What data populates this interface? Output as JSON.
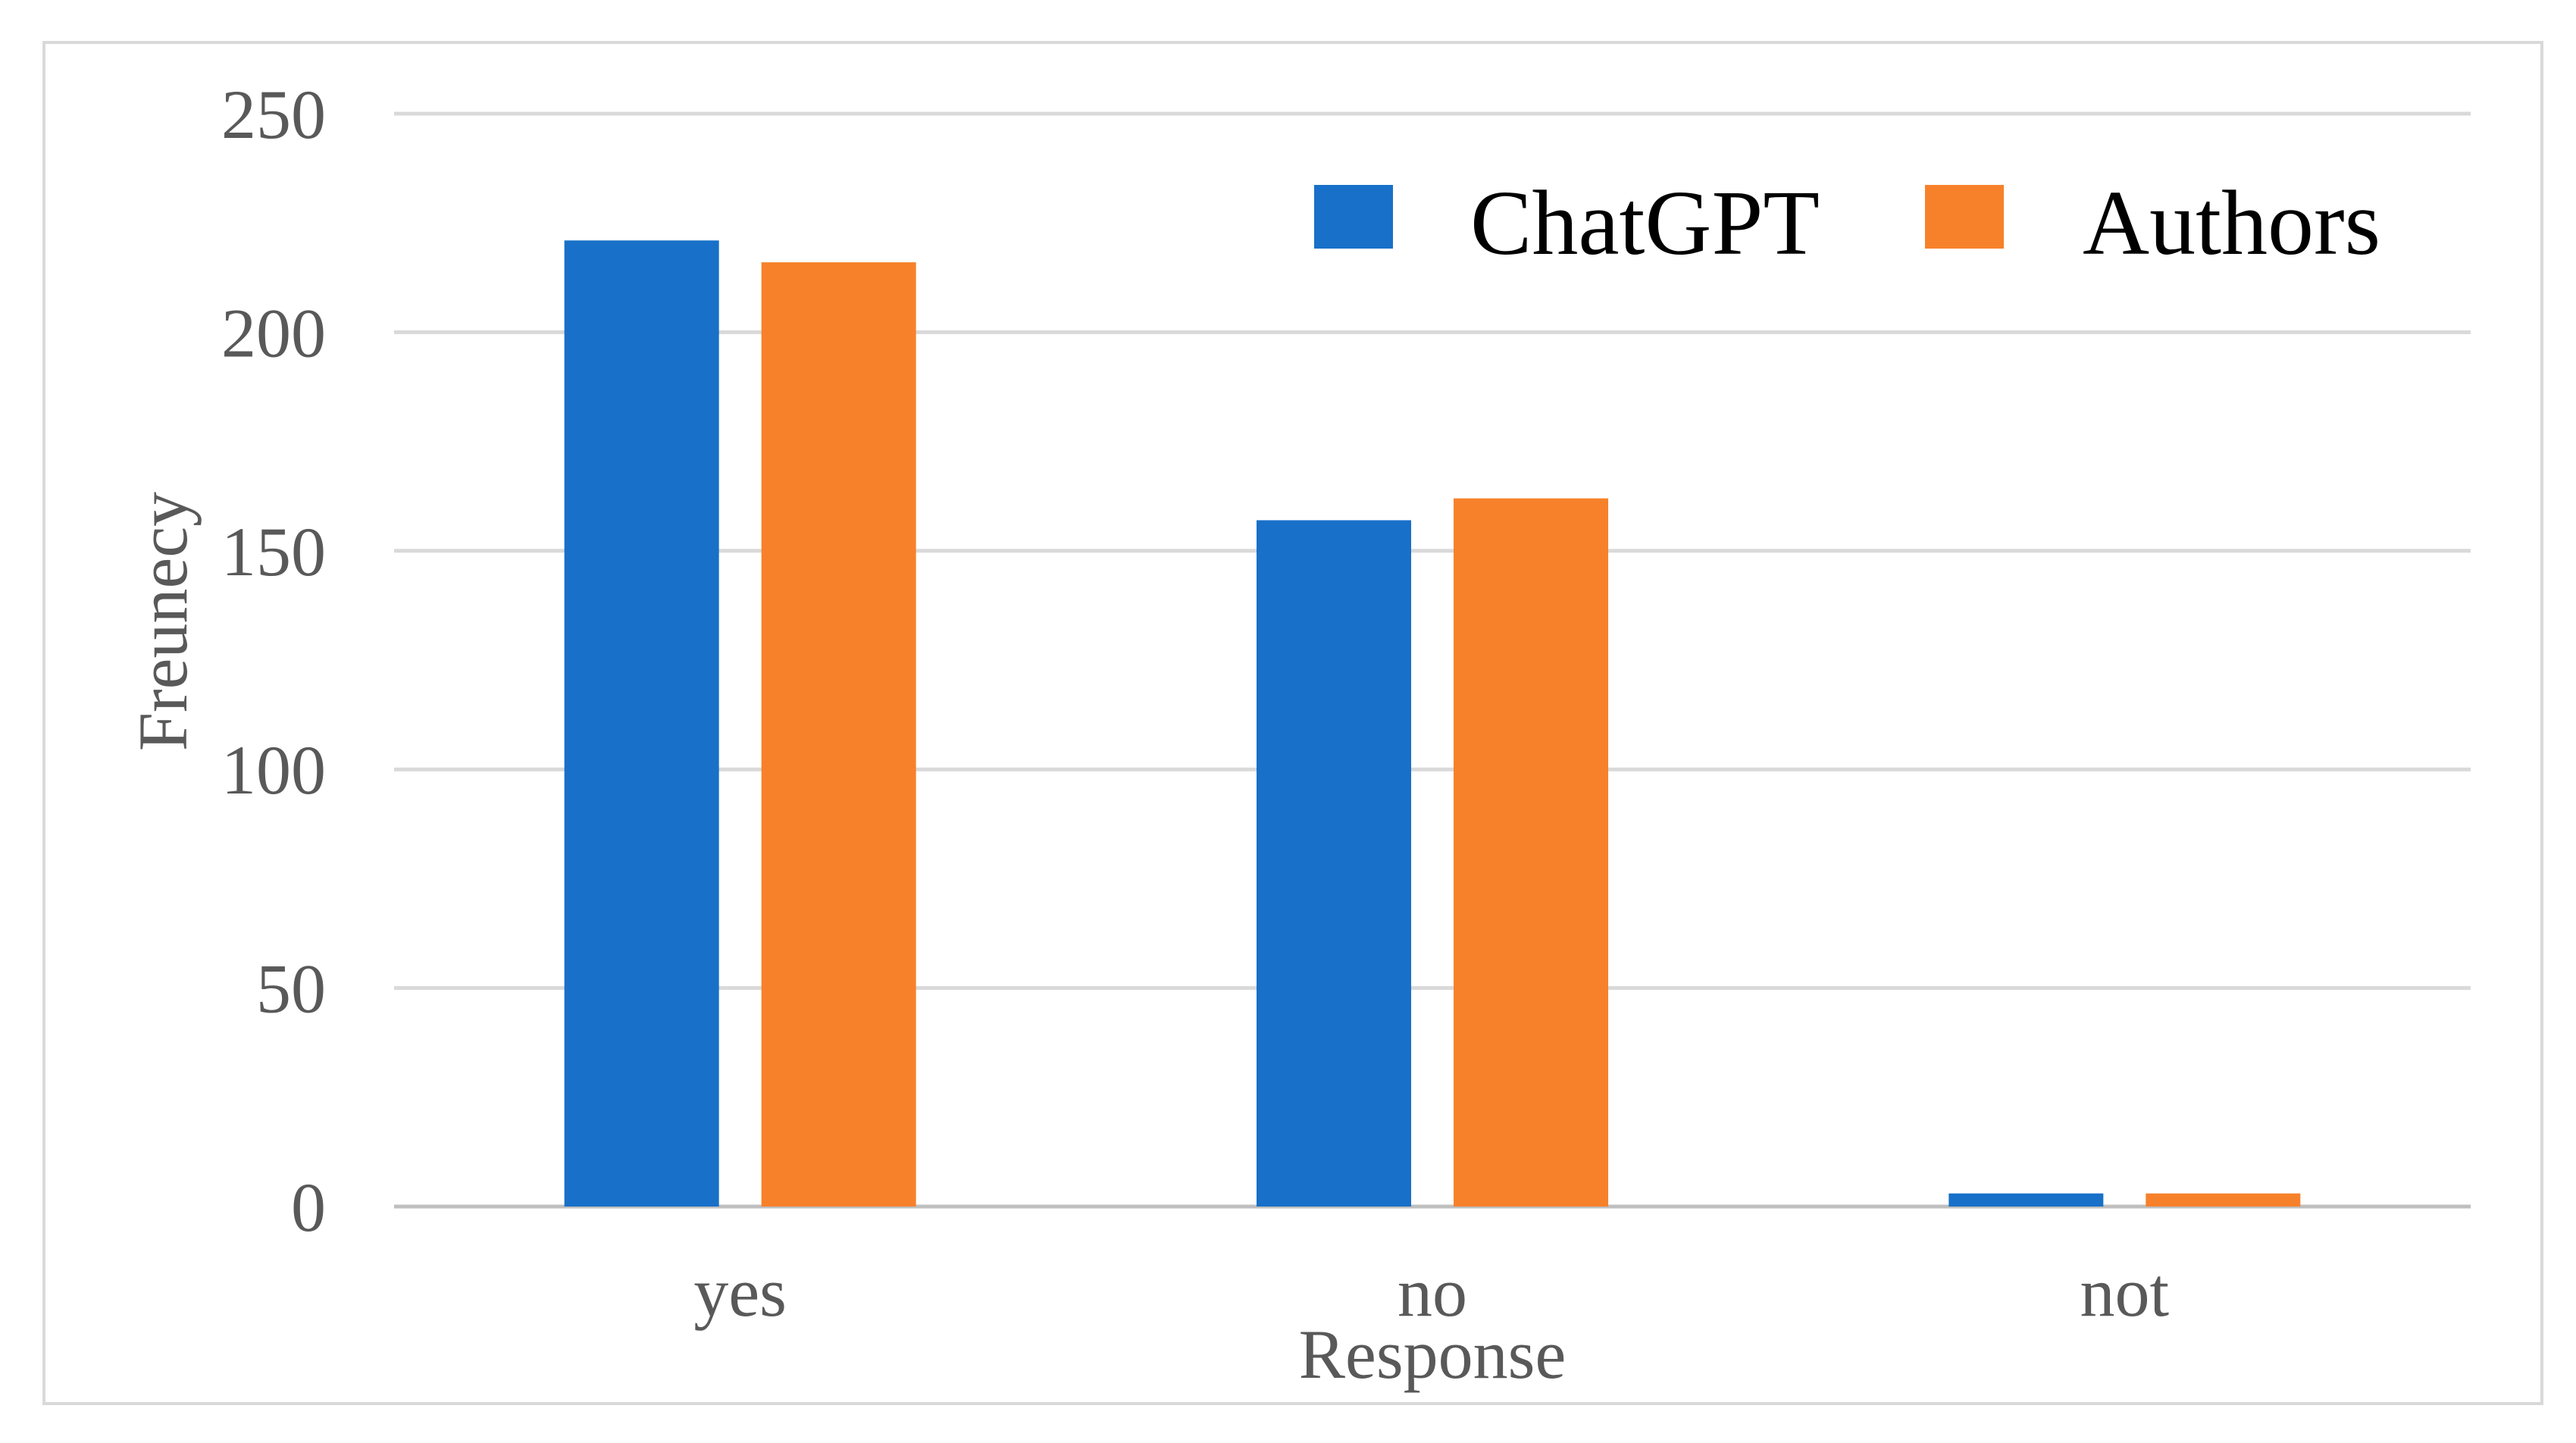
{
  "chart_data": {
    "type": "bar",
    "categories": [
      "yes",
      "no",
      "not"
    ],
    "series": [
      {
        "name": "ChatGPT",
        "color": "#1870c8",
        "values": [
          221,
          157,
          3
        ]
      },
      {
        "name": "Authors",
        "color": "#f7812a",
        "values": [
          216,
          162,
          3
        ]
      }
    ],
    "xlabel": "Response",
    "ylabel": "Freunecy",
    "ylim": [
      0,
      250
    ],
    "yticks": [
      0,
      50,
      100,
      150,
      200,
      250
    ],
    "grid": true,
    "legend_position": "top-right"
  }
}
